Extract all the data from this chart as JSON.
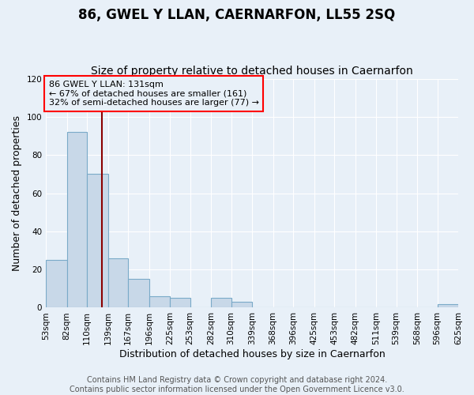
{
  "title": "86, GWEL Y LLAN, CAERNARFON, LL55 2SQ",
  "subtitle": "Size of property relative to detached houses in Caernarfon",
  "xlabel": "Distribution of detached houses by size in Caernarfon",
  "ylabel": "Number of detached properties",
  "bin_edges": [
    53,
    82,
    110,
    139,
    167,
    196,
    225,
    253,
    282,
    310,
    339,
    368,
    396,
    425,
    453,
    482,
    511,
    539,
    568,
    596,
    625
  ],
  "bin_heights": [
    25,
    92,
    70,
    26,
    15,
    6,
    5,
    0,
    5,
    3,
    0,
    0,
    0,
    0,
    0,
    0,
    0,
    0,
    0,
    2
  ],
  "bar_color": "#c8d8e8",
  "bar_edge_color": "#7aaac8",
  "ref_line_x": 131,
  "ref_line_color": "#8b0000",
  "annotation_line1": "86 GWEL Y LLAN: 131sqm",
  "annotation_line2": "← 67% of detached houses are smaller (161)",
  "annotation_line3": "32% of semi-detached houses are larger (77) →",
  "annotation_box_color": "red",
  "ylim": [
    0,
    120
  ],
  "yticks": [
    0,
    20,
    40,
    60,
    80,
    100,
    120
  ],
  "tick_labels": [
    "53sqm",
    "82sqm",
    "110sqm",
    "139sqm",
    "167sqm",
    "196sqm",
    "225sqm",
    "253sqm",
    "282sqm",
    "310sqm",
    "339sqm",
    "368sqm",
    "396sqm",
    "425sqm",
    "453sqm",
    "482sqm",
    "511sqm",
    "539sqm",
    "568sqm",
    "596sqm",
    "625sqm"
  ],
  "footer_line1": "Contains HM Land Registry data © Crown copyright and database right 2024.",
  "footer_line2": "Contains public sector information licensed under the Open Government Licence v3.0.",
  "background_color": "#e8f0f8",
  "grid_color": "#ffffff",
  "title_fontsize": 12,
  "subtitle_fontsize": 10,
  "label_fontsize": 9,
  "tick_fontsize": 7.5,
  "footer_fontsize": 7
}
